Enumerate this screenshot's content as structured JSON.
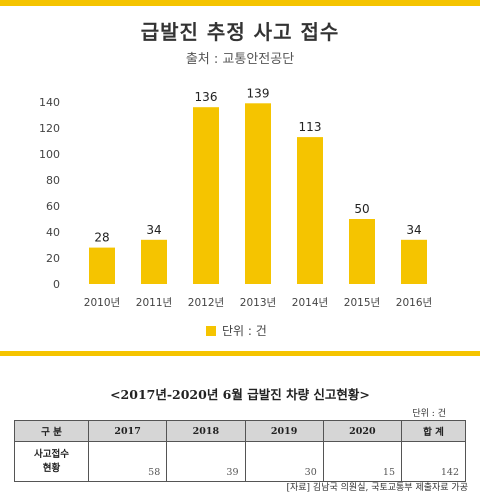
{
  "title": "급발진 추정 사고 접수",
  "source": "출처 : 교통안전공단",
  "legend_label": "단위 : 건",
  "colors": {
    "accent": "#f5c400",
    "bar": "#f5c400",
    "header_fill": "#d6d6d6"
  },
  "chart_data": {
    "type": "bar",
    "categories": [
      "2010년",
      "2011년",
      "2012년",
      "2013년",
      "2014년",
      "2015년",
      "2016년"
    ],
    "values": [
      28,
      34,
      136,
      139,
      113,
      50,
      34
    ],
    "y_ticks": [
      0,
      20,
      40,
      60,
      80,
      100,
      120,
      140
    ],
    "ylim": [
      0,
      140
    ],
    "grid": false,
    "legend_position": "bottom-center"
  },
  "table": {
    "title": "<2017년-2020년 6월 급발진 차량 신고현황>",
    "unit": "단위 : 건",
    "headers": [
      "구 분",
      "2017",
      "2018",
      "2019",
      "2020",
      "합 계"
    ],
    "row_label": [
      "사고접수",
      "현황"
    ],
    "values": [
      "58",
      "39",
      "30",
      "15",
      "142"
    ],
    "footnote": "[자료] 김남국 의원실, 국토교통부 제출자료 가공"
  }
}
